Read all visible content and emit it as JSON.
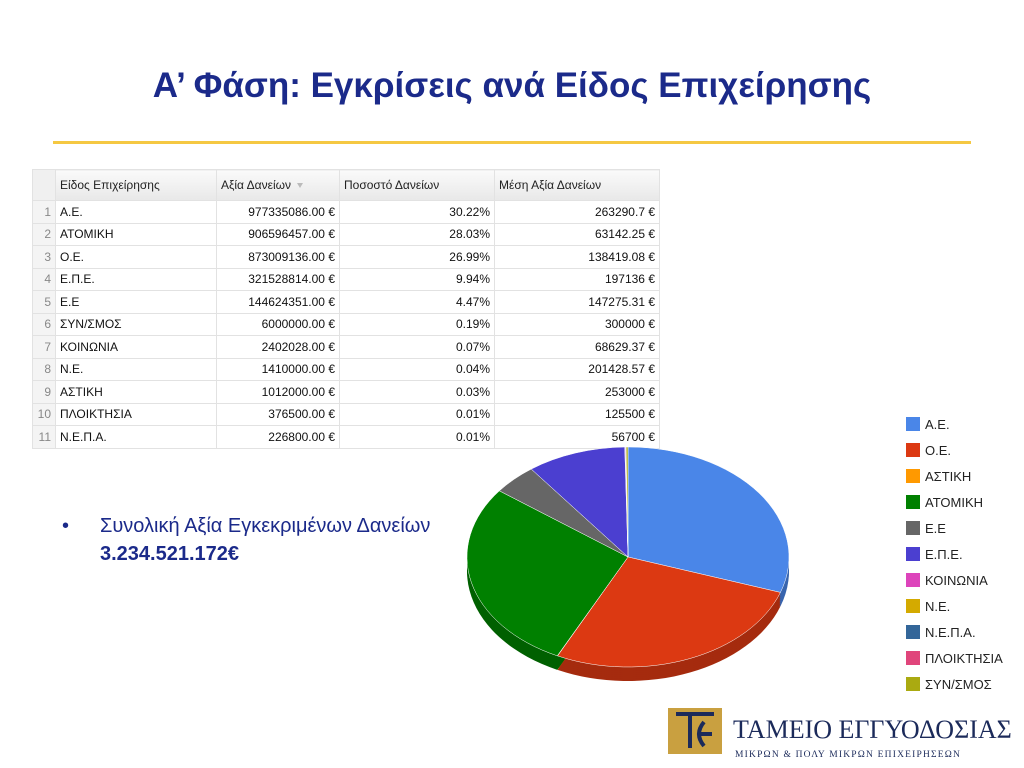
{
  "title": "Α’ Φάση: Εγκρίσεις ανά Είδος Επιχείρησης",
  "table": {
    "header": [
      "Είδος Επιχείρησης",
      "Αξία Δανείων",
      "Ποσοστό Δανείων",
      "Μέση Αξία Δανείων"
    ],
    "rows": [
      [
        "1",
        "Α.Ε.",
        "977335086.00 €",
        "30.22%",
        "263290.7 €"
      ],
      [
        "2",
        "ΑΤΟΜΙΚΗ",
        "906596457.00 €",
        "28.03%",
        "63142.25 €"
      ],
      [
        "3",
        "Ο.Ε.",
        "873009136.00 €",
        "26.99%",
        "138419.08 €"
      ],
      [
        "4",
        "Ε.Π.Ε.",
        "321528814.00 €",
        "9.94%",
        "197136 €"
      ],
      [
        "5",
        "Ε.Ε",
        "144624351.00 €",
        "4.47%",
        "147275.31 €"
      ],
      [
        "6",
        "ΣΥΝ/ΣΜΟΣ",
        "6000000.00 €",
        "0.19%",
        "300000 €"
      ],
      [
        "7",
        "ΚΟΙΝΩΝΙΑ",
        "2402028.00 €",
        "0.07%",
        "68629.37 €"
      ],
      [
        "8",
        "Ν.Ε.",
        "1410000.00 €",
        "0.04%",
        "201428.57 €"
      ],
      [
        "9",
        "ΑΣΤΙΚΗ",
        "1012000.00 €",
        "0.03%",
        "253000 €"
      ],
      [
        "10",
        "ΠΛΟΙΚΤΗΣΙΑ",
        "376500.00 €",
        "0.01%",
        "125500 €"
      ],
      [
        "11",
        "Ν.Ε.Π.Α.",
        "226800.00 €",
        "0.01%",
        "56700 €"
      ]
    ]
  },
  "bullet": {
    "text": "Συνολική Αξία Εγκεκριμένων Δανείων",
    "bold": "3.234.521.172€"
  },
  "chart_data": {
    "type": "pie",
    "series": [
      {
        "name": "Α.Ε.",
        "color": "#4a86e8",
        "values": [
          30.22
        ]
      },
      {
        "name": "Ο.Ε.",
        "color": "#dc3912",
        "values": [
          26.99
        ]
      },
      {
        "name": "ΑΣΤΙΚΗ",
        "color": "#ff9900",
        "values": [
          0.03
        ]
      },
      {
        "name": "ΑΤΟΜΙΚΗ",
        "color": "#008000",
        "values": [
          28.03
        ]
      },
      {
        "name": "Ε.Ε",
        "color": "#666666",
        "values": [
          4.47
        ]
      },
      {
        "name": "Ε.Π.Ε.",
        "color": "#4b3fd0",
        "values": [
          9.94
        ]
      },
      {
        "name": "ΚΟΙΝΩΝΙΑ",
        "color": "#dd44bb",
        "values": [
          0.07
        ]
      },
      {
        "name": "Ν.Ε.",
        "color": "#d4aa00",
        "values": [
          0.04
        ]
      },
      {
        "name": "Ν.Ε.Π.Α.",
        "color": "#336699",
        "values": [
          0.01
        ]
      },
      {
        "name": "ΠΛΟΙΚΤΗΣΙΑ",
        "color": "#e0457b",
        "values": [
          0.01
        ]
      },
      {
        "name": "ΣΥΝ/ΣΜΟΣ",
        "color": "#aaaa11",
        "values": [
          0.19
        ]
      }
    ],
    "legend": "right"
  },
  "logo": {
    "title": "ΤΑΜΕΙΟ ΕΓΓΥΟΔΟΣΙΑΣ",
    "subtitle": "ΜΙΚΡΩΝ & ΠΟΛΥ ΜΙΚΡΩΝ ΕΠΙΧΕΙΡΗΣΕΩΝ"
  }
}
